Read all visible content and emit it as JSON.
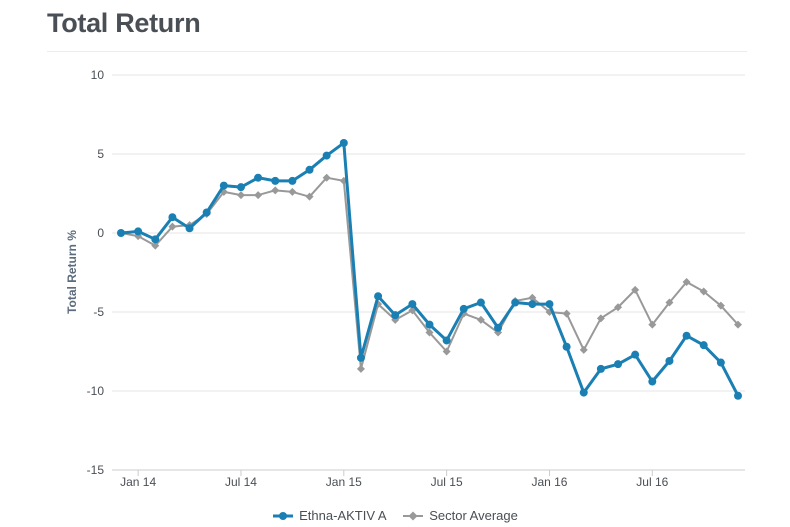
{
  "header": {
    "title": "Total Return"
  },
  "colors": {
    "fund": "#1a7fb3",
    "sector": "#999999",
    "grid": "#e6e6e6",
    "text": "#4a4f55"
  },
  "chart_data": {
    "type": "line",
    "title": "Total Return",
    "ylabel": "Total Return %",
    "xlabel": "",
    "ylim": [
      -15,
      10
    ],
    "yticks": [
      10,
      5,
      0,
      -5,
      -10,
      -15
    ],
    "xlim": [
      "2013-12",
      "2016-12"
    ],
    "xticks": [
      "Jan 14",
      "Jul 14",
      "Jan 15",
      "Jul 15",
      "Jan 16",
      "Jul 16"
    ],
    "grid": "horizontal",
    "legend_position": "bottom",
    "x": [
      "2013-12",
      "2014-01",
      "2014-02",
      "2014-03",
      "2014-04",
      "2014-05",
      "2014-06",
      "2014-07",
      "2014-08",
      "2014-09",
      "2014-10",
      "2014-11",
      "2014-12",
      "2015-01",
      "2015-02",
      "2015-03",
      "2015-04",
      "2015-05",
      "2015-06",
      "2015-07",
      "2015-08",
      "2015-09",
      "2015-10",
      "2015-11",
      "2015-12",
      "2016-01",
      "2016-02",
      "2016-03",
      "2016-04",
      "2016-05",
      "2016-06",
      "2016-07",
      "2016-08",
      "2016-09",
      "2016-10",
      "2016-11",
      "2016-12"
    ],
    "series": [
      {
        "name": "Ethna-AKTIV A",
        "values": [
          0.0,
          0.1,
          -0.4,
          1.0,
          0.3,
          1.3,
          3.0,
          2.9,
          3.5,
          3.3,
          3.3,
          4.0,
          4.9,
          5.7,
          -7.9,
          -4.0,
          -5.2,
          -4.5,
          -5.8,
          -6.8,
          -4.8,
          -4.4,
          -6.0,
          -4.4,
          -4.5,
          -4.5,
          -7.2,
          -10.1,
          -8.6,
          -8.3,
          -7.7,
          -9.4,
          -8.1,
          -6.5,
          -7.1,
          -8.2,
          -10.3
        ]
      },
      {
        "name": "Sector Average",
        "values": [
          0.0,
          -0.2,
          -0.8,
          0.4,
          0.5,
          1.2,
          2.6,
          2.4,
          2.4,
          2.7,
          2.6,
          2.3,
          3.5,
          3.3,
          -8.6,
          -4.5,
          -5.5,
          -4.9,
          -6.3,
          -7.5,
          -5.1,
          -5.5,
          -6.3,
          -4.3,
          -4.1,
          -5.0,
          -5.1,
          -7.4,
          -5.4,
          -4.7,
          -3.6,
          -5.8,
          -4.4,
          -3.1,
          -3.7,
          -4.6,
          -5.8
        ]
      }
    ]
  }
}
